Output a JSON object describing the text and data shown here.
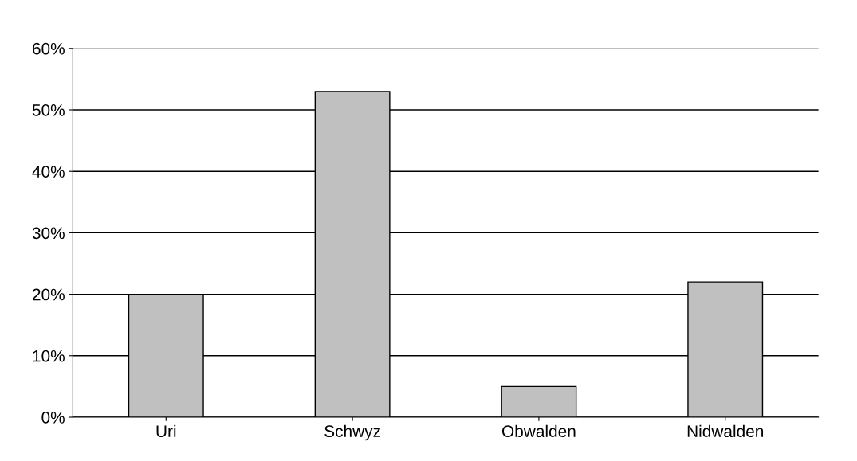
{
  "chart_data": {
    "type": "bar",
    "categories": [
      "Uri",
      "Schwyz",
      "Obwalden",
      "Nidwalden"
    ],
    "values": [
      20,
      53,
      5,
      22
    ],
    "color": "#c0c0c0",
    "ylim": [
      0,
      60
    ],
    "yticks": [
      {
        "value": 0,
        "label": "0%"
      },
      {
        "value": 10,
        "label": "10%"
      },
      {
        "value": 20,
        "label": "20%"
      },
      {
        "value": 30,
        "label": "30%"
      },
      {
        "value": 40,
        "label": "40%"
      },
      {
        "value": 50,
        "label": "50%"
      },
      {
        "value": 60,
        "label": "60%"
      }
    ],
    "grid": "y"
  }
}
